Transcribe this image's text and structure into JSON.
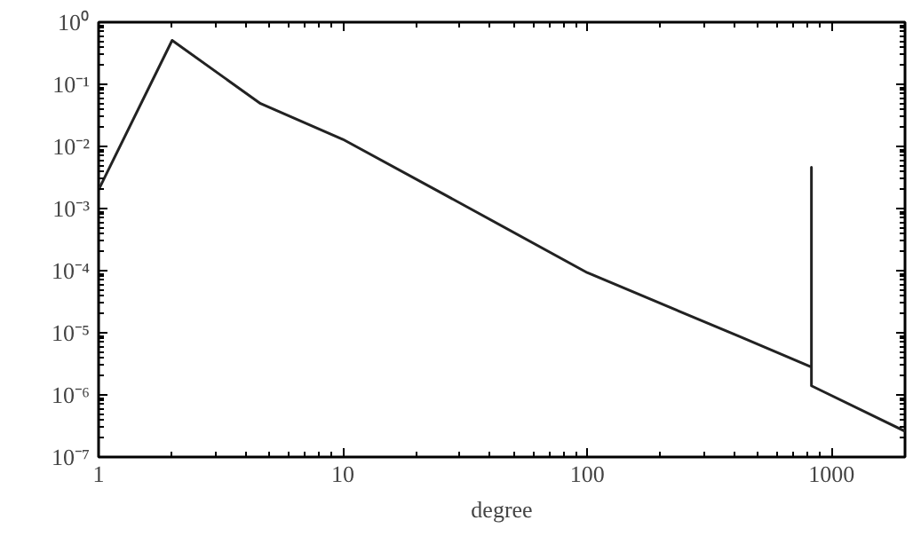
{
  "chart_data": {
    "type": "line",
    "xlabel": "degree",
    "log": "xy",
    "grid": false,
    "marker": "none",
    "line_style": "solid",
    "x": [
      1,
      2,
      4.6,
      10,
      25.9,
      100,
      418,
      828,
      828,
      828,
      2000
    ],
    "series": [
      {
        "color": "#222222",
        "values": [
          0.002,
          0.51,
          0.049,
          0.013,
          0.0017,
          9.3e-05,
          8.8e-06,
          2.8e-06,
          0.0046,
          1.4e-06,
          2.6e-07
        ]
      }
    ],
    "xlim": [
      1,
      2000
    ],
    "xticks": [
      1,
      10,
      100,
      1000
    ],
    "ylim": [
      1e-07,
      1
    ],
    "yticks": [
      {
        "value": 1e-07,
        "label": "10⁻⁷"
      },
      {
        "value": 1e-06,
        "label": "10⁻⁶"
      },
      {
        "value": 1e-05,
        "label": "10⁻⁵"
      },
      {
        "value": 0.0001,
        "label": "10⁻⁴"
      },
      {
        "value": 0.001,
        "label": "10⁻³"
      },
      {
        "value": 0.01,
        "label": "10⁻²"
      },
      {
        "value": 0.1,
        "label": "10⁻¹"
      },
      {
        "value": 1,
        "label": "10⁰"
      }
    ]
  }
}
